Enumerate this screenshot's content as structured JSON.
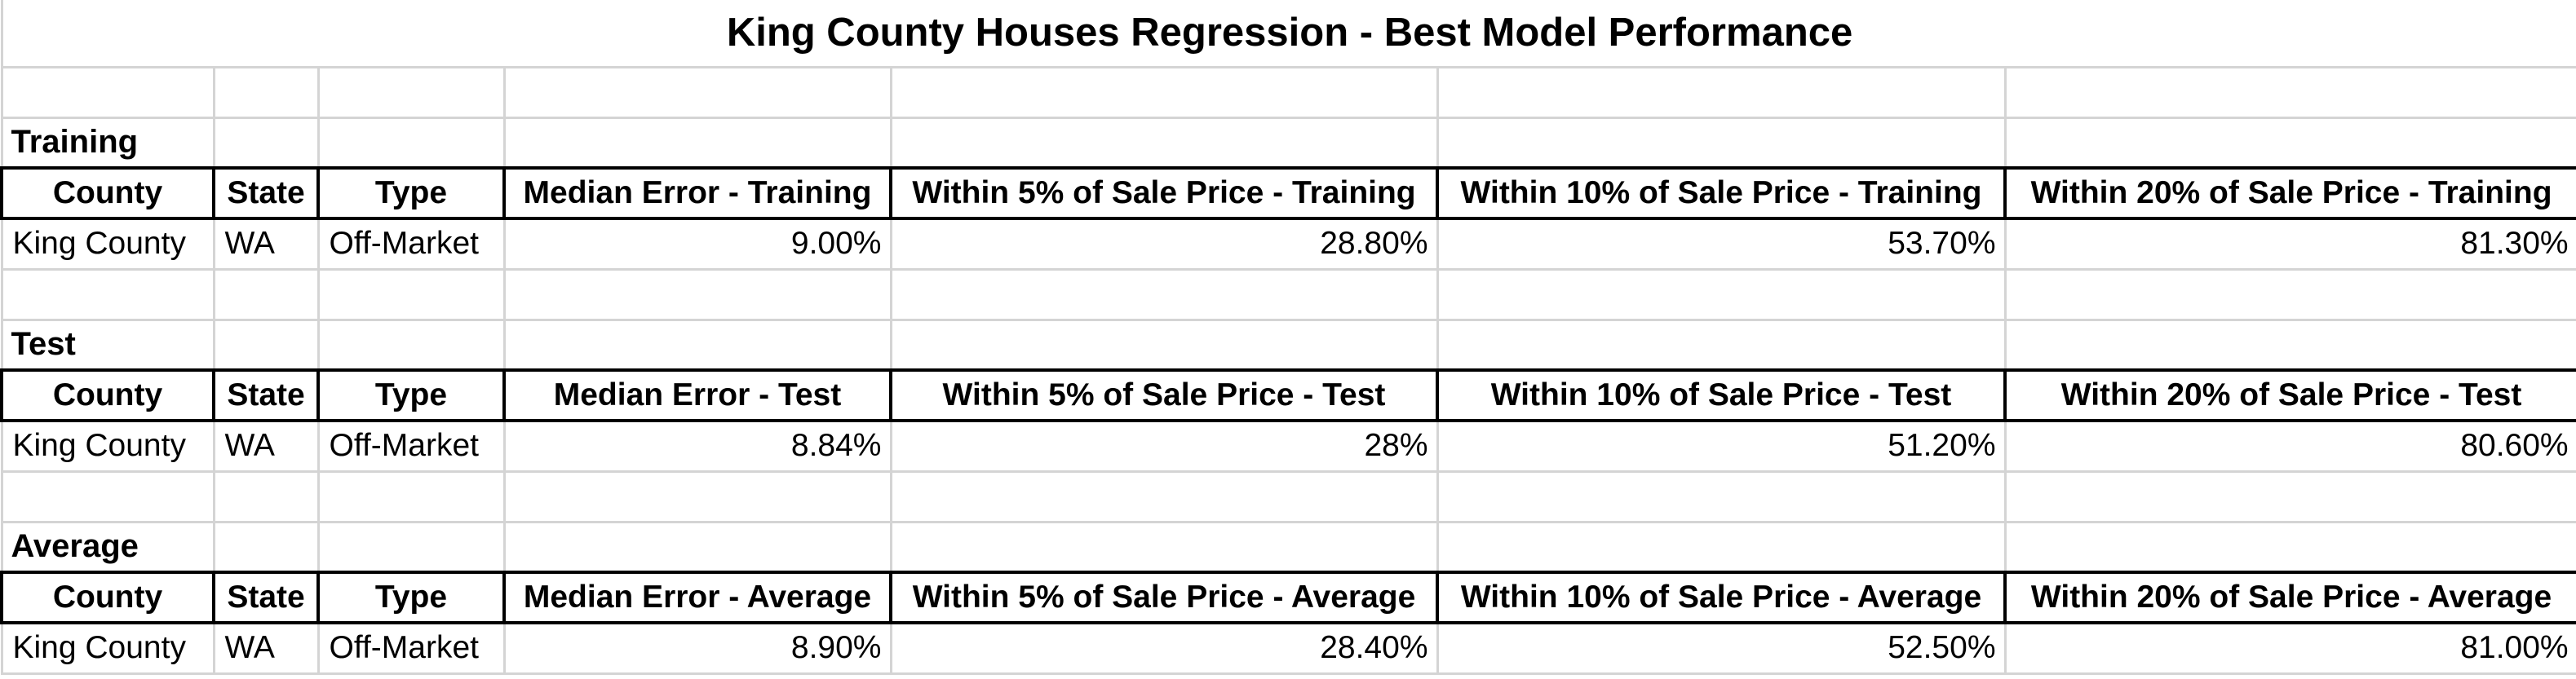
{
  "title": "King County Houses Regression - Best Model Performance",
  "sections": [
    {
      "label": "Training",
      "headers": [
        "County",
        "State",
        "Type",
        "Median Error - Training",
        "Within 5% of Sale Price - Training",
        "Within 10% of Sale Price - Training",
        "Within 20% of Sale Price - Training"
      ],
      "row": [
        "King County",
        "WA",
        "Off-Market",
        "9.00%",
        "28.80%",
        "53.70%",
        "81.30%"
      ]
    },
    {
      "label": "Test",
      "headers": [
        "County",
        "State",
        "Type",
        "Median Error - Test",
        "Within 5% of Sale Price - Test",
        "Within 10% of Sale Price - Test",
        "Within 20% of Sale Price - Test"
      ],
      "row": [
        "King County",
        "WA",
        "Off-Market",
        "8.84%",
        "28%",
        "51.20%",
        "80.60%"
      ]
    },
    {
      "label": "Average",
      "headers": [
        "County",
        "State",
        "Type",
        "Median Error - Average",
        "Within 5% of Sale Price - Average",
        "Within 10% of Sale Price - Average",
        "Within 20% of Sale Price - Average"
      ],
      "row": [
        "King County",
        "WA",
        "Off-Market",
        "8.90%",
        "28.40%",
        "52.50%",
        "81.00%"
      ]
    }
  ]
}
